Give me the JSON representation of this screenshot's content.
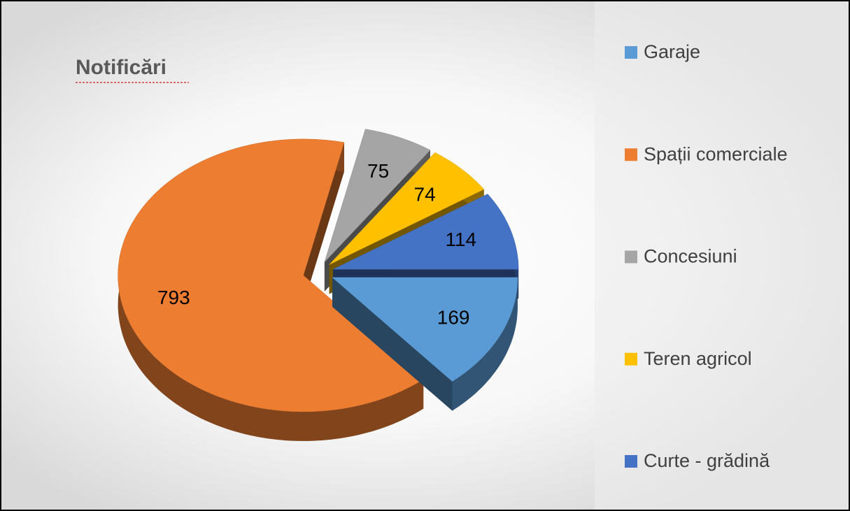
{
  "chart_data": {
    "type": "pie3d",
    "title": "Notificări",
    "categories": [
      "Garaje",
      "Spații comerciale",
      "Concesiuni",
      "Teren agricol",
      "Curte - grădină"
    ],
    "values": [
      169,
      793,
      75,
      74,
      114
    ],
    "colors": [
      "#5b9bd5",
      "#ed7d31",
      "#a5a5a5",
      "#ffc000",
      "#4472c4"
    ],
    "legend": "right"
  }
}
